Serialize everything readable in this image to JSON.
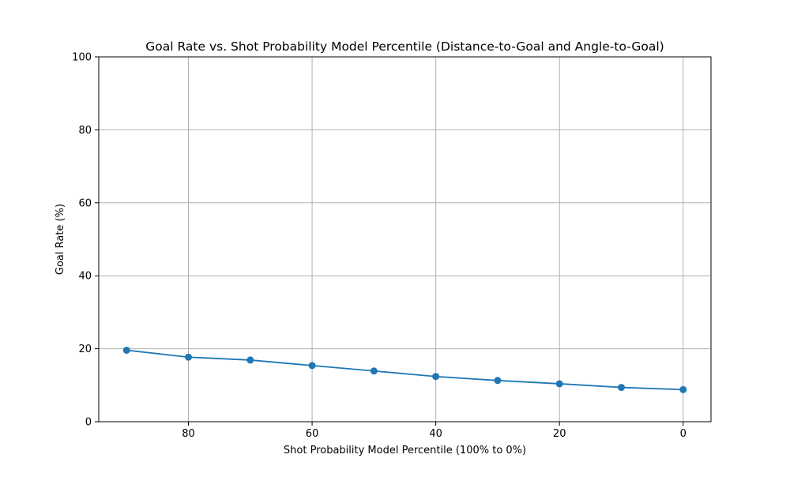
{
  "chart_data": {
    "type": "line",
    "title": "Goal Rate vs. Shot Probability Model Percentile (Distance-to-Goal and Angle-to-Goal)",
    "xlabel": "Shot Probability Model Percentile (100% to 0%)",
    "ylabel": "Goal Rate (%)",
    "x_inverted": true,
    "xlim": [
      94.5,
      -4.5
    ],
    "ylim": [
      0,
      100
    ],
    "x_ticks": [
      80,
      60,
      40,
      20,
      0
    ],
    "x_tick_labels": [
      "80",
      "60",
      "40",
      "20",
      "0"
    ],
    "y_ticks": [
      0,
      20,
      40,
      60,
      80,
      100
    ],
    "y_tick_labels": [
      "0",
      "20",
      "40",
      "60",
      "80",
      "100"
    ],
    "grid": true,
    "series": [
      {
        "x": [
          90,
          80,
          70,
          60,
          50,
          40,
          30,
          20,
          10,
          0
        ],
        "values": [
          19.6,
          17.7,
          16.9,
          15.4,
          13.9,
          12.4,
          11.3,
          10.4,
          9.4,
          8.8
        ],
        "color": "#1f77b4",
        "marker": "circle"
      }
    ]
  }
}
